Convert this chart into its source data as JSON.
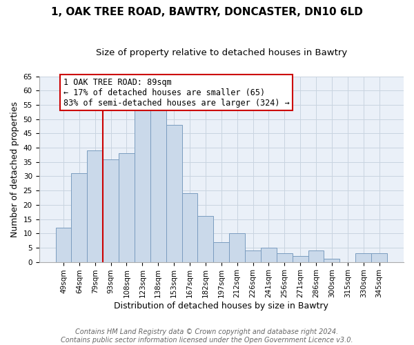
{
  "title1": "1, OAK TREE ROAD, BAWTRY, DONCASTER, DN10 6LD",
  "title2": "Size of property relative to detached houses in Bawtry",
  "xlabel": "Distribution of detached houses by size in Bawtry",
  "ylabel": "Number of detached properties",
  "bar_labels": [
    "49sqm",
    "64sqm",
    "79sqm",
    "93sqm",
    "108sqm",
    "123sqm",
    "138sqm",
    "153sqm",
    "167sqm",
    "182sqm",
    "197sqm",
    "212sqm",
    "226sqm",
    "241sqm",
    "256sqm",
    "271sqm",
    "286sqm",
    "300sqm",
    "315sqm",
    "330sqm",
    "345sqm"
  ],
  "bar_values": [
    12,
    31,
    39,
    36,
    38,
    53,
    54,
    48,
    24,
    16,
    7,
    10,
    4,
    5,
    3,
    2,
    4,
    1,
    0,
    3,
    3
  ],
  "bar_color": "#cad9ea",
  "bar_edge_color": "#7a9cbf",
  "vline_color": "#cc0000",
  "ylim": [
    0,
    65
  ],
  "yticks": [
    0,
    5,
    10,
    15,
    20,
    25,
    30,
    35,
    40,
    45,
    50,
    55,
    60,
    65
  ],
  "annotation_title": "1 OAK TREE ROAD: 89sqm",
  "annotation_line1": "← 17% of detached houses are smaller (65)",
  "annotation_line2": "83% of semi-detached houses are larger (324) →",
  "annotation_box_color": "#ffffff",
  "annotation_box_edge": "#cc0000",
  "footer1": "Contains HM Land Registry data © Crown copyright and database right 2024.",
  "footer2": "Contains public sector information licensed under the Open Government Licence v3.0.",
  "title_fontsize": 11,
  "subtitle_fontsize": 9.5,
  "axis_label_fontsize": 9,
  "tick_fontsize": 7.5,
  "annotation_fontsize": 8.5,
  "footer_fontsize": 7,
  "bg_color": "#eaf0f8",
  "grid_color": "#c8d4e0"
}
